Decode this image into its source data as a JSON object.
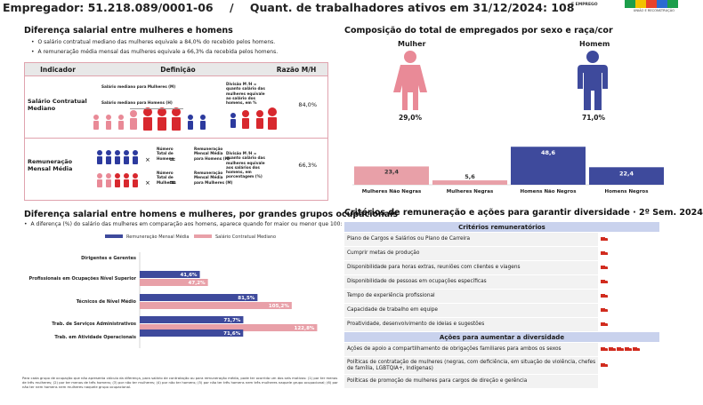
{
  "header": {
    "employer": "Empregador: 51.218.089/0001-06",
    "sep": "/",
    "workers": "Quant. de trabalhadores ativos em 31/12/2024: 108",
    "logo_text": "E EMPREGO",
    "logo_sub": "UNIÃO E RECONSTRUÇÃO"
  },
  "salary_diff": {
    "title": "Diferença salarial entre mulheres e homens",
    "bullets": [
      "O salário contratual mediano das mulheres equivale a 84,0% do recebido pelos homens.",
      "A remuneração média mensal das mulheres equivale a 66,3% da recebida pelos homens."
    ],
    "table": {
      "headers": [
        "Indicador",
        "Definição",
        "Razão M/H"
      ],
      "rows": [
        {
          "indicator": "Salário Contratual Mediano",
          "def_w": "Salário mediano para Mulheres (M)",
          "def_m": "Salário mediano para Homens (H)",
          "def_note": "Divisão M /H = quanto salário das mulheres equivale ao salário dos homens, em %",
          "ratio": "84,0%"
        },
        {
          "indicator": "Remuneração Mensal Média",
          "def_a": "Número Total de Homens",
          "def_b": "Remuneração Mensal Média para Homens (H)",
          "def_c": "Número Total de Mulheres",
          "def_d": "Remuneração Mensal Média para Mulheres (M)",
          "def_note": "Divisão M /H = quanto salário das mulheres equivale aos salários dos homens, em porcentagem (%)",
          "ratio": "66,3%"
        }
      ]
    }
  },
  "composition": {
    "title": "Composição do total de empregados por sexo e raça/cor",
    "female_label": "Mulher",
    "male_label": "Homem",
    "female_pct": "29,0%",
    "male_pct": "71,0%"
  },
  "chart_data": [
    {
      "type": "bar",
      "categories": [
        "Mulheres Não Negras",
        "Mulheres Negras",
        "Homens Não Negros",
        "Homens Negros"
      ],
      "values": [
        23.4,
        5.6,
        48.6,
        22.4
      ],
      "labels": [
        "23,4",
        "5,6",
        "48,6",
        "22,4"
      ],
      "colors": [
        "#e8a0a8",
        "#e8a0a8",
        "#3e4a9c",
        "#3e4a9c"
      ],
      "ylim": [
        0,
        50
      ]
    },
    {
      "type": "bar",
      "title": "Diferença salarial entre homens e mulheres, por grandes grupos ocupacionais",
      "subtitle": "A diferença (%) do salário das mulheres em comparação aos homens, aparece quando for maior ou menor que 100:",
      "categories": [
        "Dirigentes e Gerentes",
        "Profissionais em Ocupações Nível Superior",
        "Técnicos de Nível Médio",
        "Trab. de Serviços Administrativos",
        "Trab. em Atividade Operacionais"
      ],
      "series": [
        {
          "name": "Remuneração Mensal Média",
          "color": "#3e4a9c",
          "values": [
            null,
            41.6,
            81.5,
            71.7,
            71.6
          ],
          "labels": [
            "",
            "41,6%",
            "81,5%",
            "71,7%",
            "71,6%"
          ]
        },
        {
          "name": "Salário Contratual Mediano",
          "color": "#e8a0a8",
          "values": [
            null,
            47.2,
            105.2,
            122.8,
            null
          ],
          "labels": [
            "",
            "47,2%",
            "105,2%",
            "122,8%",
            ""
          ]
        }
      ],
      "xlim": [
        0,
        125
      ],
      "legend": "top"
    }
  ],
  "criteria": {
    "title": "Critérios de remuneração e ações para garantir diversidade · 2º Sem. 2024",
    "section1": "Critérios remuneratórios",
    "rows1": [
      {
        "label": "Plano de Cargos e Salários ou Plano de Carreira",
        "icons": 1
      },
      {
        "label": "Cumprir metas de produção",
        "icons": 1
      },
      {
        "label": "Disponibilidade para horas extras, reuniões com clientes e viagens",
        "icons": 1
      },
      {
        "label": "Disponibilidade de pessoas em ocupações específicas",
        "icons": 1
      },
      {
        "label": "Tempo de experiência profissional",
        "icons": 1
      },
      {
        "label": "Capacidade de trabalho em equipe",
        "icons": 1
      },
      {
        "label": "Proatividade, desenvolvimento de ideias e sugestões",
        "icons": 1
      }
    ],
    "section2": "Ações para aumentar a diversidade",
    "rows2": [
      {
        "label": "Ações de apoio a compartilhamento de obrigações familiares para ambos os sexos",
        "icons": 5
      },
      {
        "label": "Políticas de contratação de mulheres (negras, com deficiência, em situação de violência, chefes de família, LGBTQIA+, Indígenas)",
        "icons": 1
      },
      {
        "label": "Políticas de promoção de mulheres para cargos de direção e gerência",
        "icons": 0
      }
    ]
  },
  "footnote": "Para cada grupo de ocupação que não apresenta cálculo da diferença, para salário de contratação ou para remuneração média, pode ter ocorrido um dos seis motivos: (1) por ter menos de três mulheres; (2) por ter menos de três homens; (3) por não ter mulheres; (4) por não ter homens; (5) por não ter três homens nem três mulheres naquele grupo ocupacional; (6) por não ter nem homens nem mulheres naquele grupo ocupacional."
}
